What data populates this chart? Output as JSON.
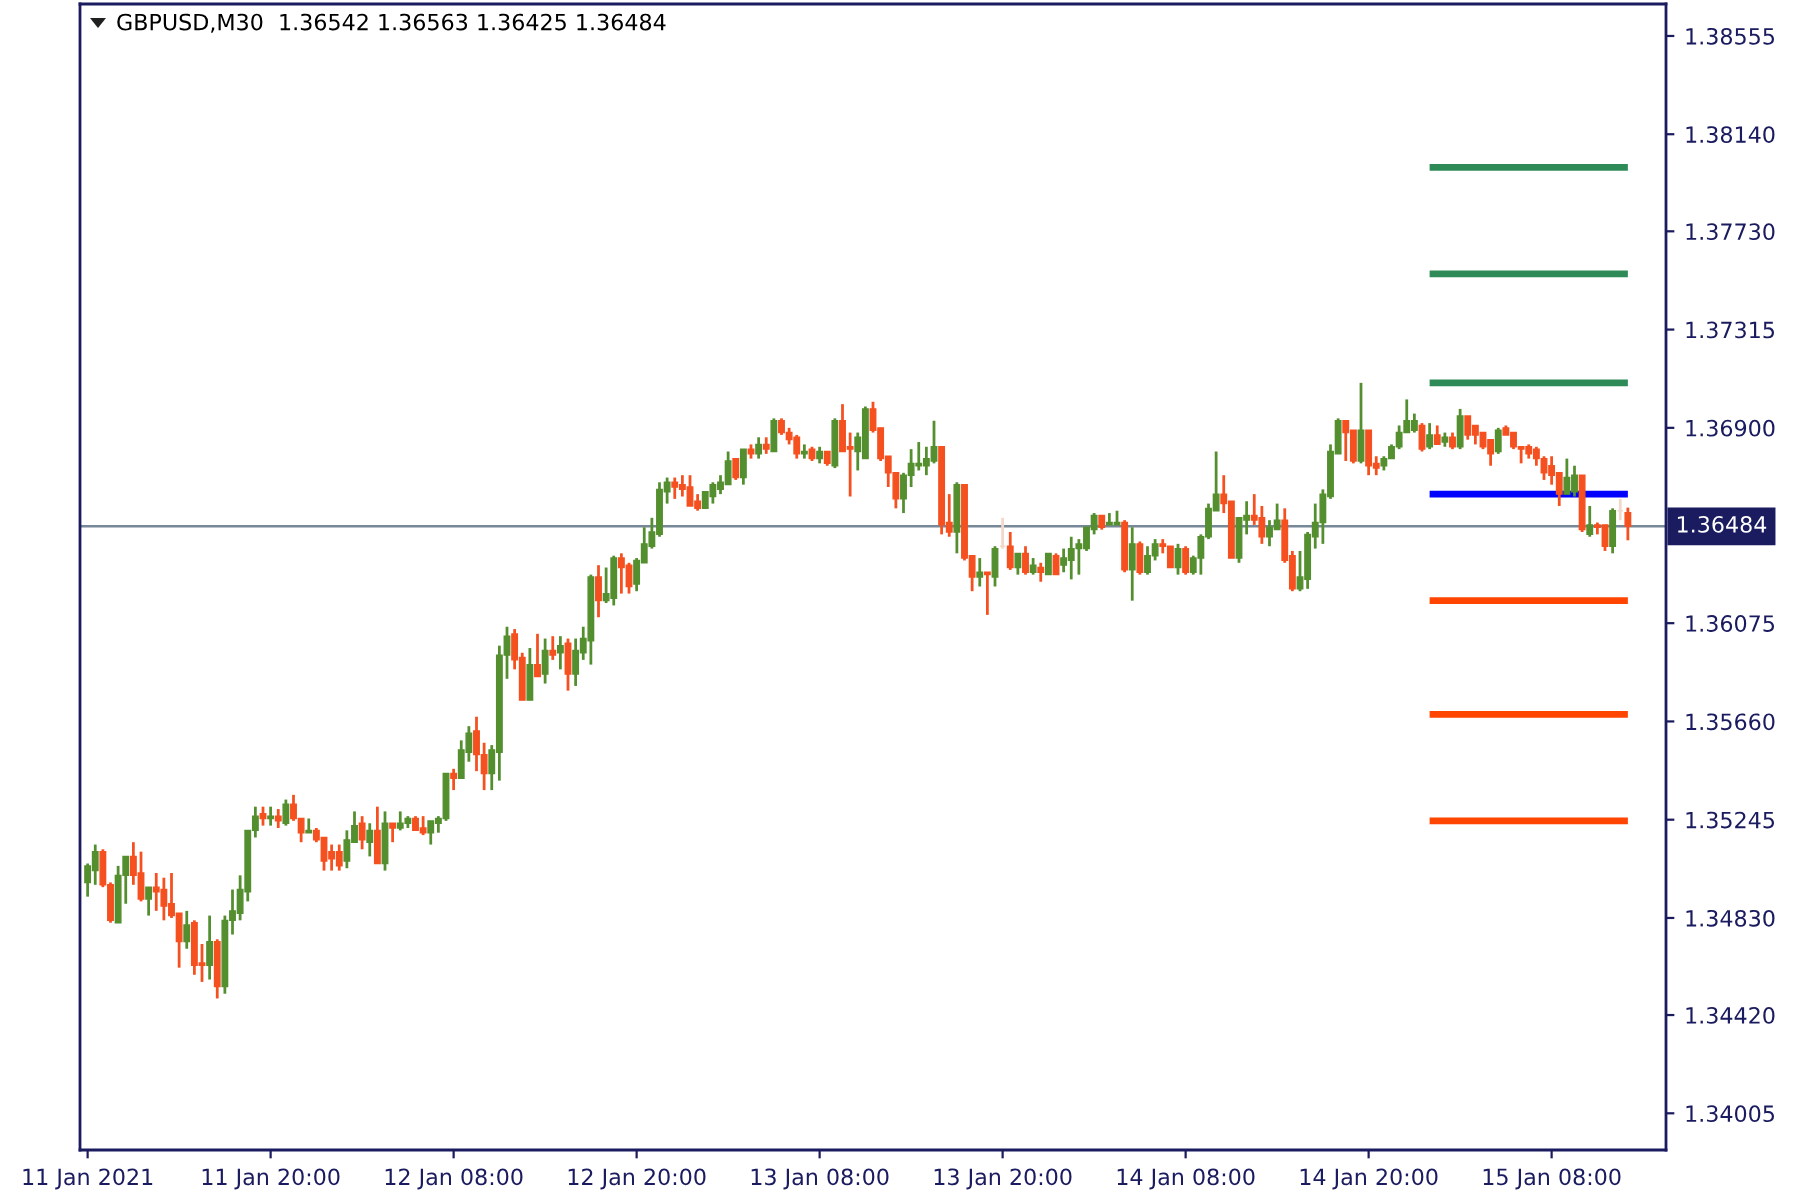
{
  "chart_data": {
    "type": "candlestick",
    "title": "GBPUSD,M30  1.36542 1.36563 1.36425 1.36484",
    "x": [
      "2021-01-11T08:00",
      "2021-01-11T08:30",
      "2021-01-11T09:00",
      "2021-01-11T09:30",
      "2021-01-11T10:00",
      "2021-01-11T10:30",
      "2021-01-11T11:00",
      "2021-01-11T11:30",
      "2021-01-11T12:00",
      "2021-01-11T12:30",
      "2021-01-11T13:00",
      "2021-01-11T13:30",
      "2021-01-11T14:00",
      "2021-01-11T14:30",
      "2021-01-11T15:00",
      "2021-01-11T15:30",
      "2021-01-11T16:00",
      "2021-01-11T16:30",
      "2021-01-11T17:00",
      "2021-01-11T17:30",
      "2021-01-11T18:00",
      "2021-01-11T18:30",
      "2021-01-11T19:00",
      "2021-01-11T19:30",
      "2021-01-11T20:00",
      "2021-01-11T20:30",
      "2021-01-11T21:00",
      "2021-01-11T21:30",
      "2021-01-11T22:00",
      "2021-01-11T22:30",
      "2021-01-11T23:00",
      "2021-01-11T23:30",
      "2021-01-12T00:00",
      "2021-01-12T00:30",
      "2021-01-12T01:00",
      "2021-01-12T01:30",
      "2021-01-12T02:00",
      "2021-01-12T02:30",
      "2021-01-12T03:00",
      "2021-01-12T03:30",
      "2021-01-12T04:00",
      "2021-01-12T04:30",
      "2021-01-12T05:00",
      "2021-01-12T05:30",
      "2021-01-12T06:00",
      "2021-01-12T06:30",
      "2021-01-12T07:00",
      "2021-01-12T07:30",
      "2021-01-12T08:00",
      "2021-01-12T08:30",
      "2021-01-12T09:00",
      "2021-01-12T09:30",
      "2021-01-12T10:00",
      "2021-01-12T10:30",
      "2021-01-12T11:00",
      "2021-01-12T11:30",
      "2021-01-12T12:00",
      "2021-01-12T12:30",
      "2021-01-12T13:00",
      "2021-01-12T13:30",
      "2021-01-12T14:00",
      "2021-01-12T14:30",
      "2021-01-12T15:00",
      "2021-01-12T15:30",
      "2021-01-12T16:00",
      "2021-01-12T16:30",
      "2021-01-12T17:00",
      "2021-01-12T17:30",
      "2021-01-12T18:00",
      "2021-01-12T18:30",
      "2021-01-12T19:00",
      "2021-01-12T19:30",
      "2021-01-12T20:00",
      "2021-01-12T20:30",
      "2021-01-12T21:00",
      "2021-01-12T21:30",
      "2021-01-12T22:00",
      "2021-01-12T22:30",
      "2021-01-12T23:00",
      "2021-01-12T23:30",
      "2021-01-13T00:00",
      "2021-01-13T00:30",
      "2021-01-13T01:00",
      "2021-01-13T01:30",
      "2021-01-13T02:00",
      "2021-01-13T02:30",
      "2021-01-13T03:00",
      "2021-01-13T03:30",
      "2021-01-13T04:00",
      "2021-01-13T04:30",
      "2021-01-13T05:00",
      "2021-01-13T05:30",
      "2021-01-13T06:00",
      "2021-01-13T06:30",
      "2021-01-13T07:00",
      "2021-01-13T07:30",
      "2021-01-13T08:00",
      "2021-01-13T08:30",
      "2021-01-13T09:00",
      "2021-01-13T09:30",
      "2021-01-13T10:00",
      "2021-01-13T10:30",
      "2021-01-13T11:00",
      "2021-01-13T11:30",
      "2021-01-13T12:00",
      "2021-01-13T12:30",
      "2021-01-13T13:00",
      "2021-01-13T13:30",
      "2021-01-13T14:00",
      "2021-01-13T14:30",
      "2021-01-13T15:00",
      "2021-01-13T15:30",
      "2021-01-13T16:00",
      "2021-01-13T16:30",
      "2021-01-13T17:00",
      "2021-01-13T17:30",
      "2021-01-13T18:00",
      "2021-01-13T18:30",
      "2021-01-13T19:00",
      "2021-01-13T19:30",
      "2021-01-13T20:00",
      "2021-01-13T20:30",
      "2021-01-13T21:00",
      "2021-01-13T21:30",
      "2021-01-13T22:00",
      "2021-01-13T22:30",
      "2021-01-13T23:00",
      "2021-01-13T23:30",
      "2021-01-14T00:00",
      "2021-01-14T00:30",
      "2021-01-14T01:00",
      "2021-01-14T01:30",
      "2021-01-14T02:00",
      "2021-01-14T02:30",
      "2021-01-14T03:00",
      "2021-01-14T03:30",
      "2021-01-14T04:00",
      "2021-01-14T04:30",
      "2021-01-14T05:00",
      "2021-01-14T05:30",
      "2021-01-14T06:00",
      "2021-01-14T06:30",
      "2021-01-14T07:00",
      "2021-01-14T07:30",
      "2021-01-14T08:00",
      "2021-01-14T08:30",
      "2021-01-14T09:00",
      "2021-01-14T09:30",
      "2021-01-14T10:00",
      "2021-01-14T10:30",
      "2021-01-14T11:00",
      "2021-01-14T11:30",
      "2021-01-14T12:00",
      "2021-01-14T12:30",
      "2021-01-14T13:00",
      "2021-01-14T13:30",
      "2021-01-14T14:00",
      "2021-01-14T14:30",
      "2021-01-14T15:00",
      "2021-01-14T15:30",
      "2021-01-14T16:00",
      "2021-01-14T16:30",
      "2021-01-14T17:00",
      "2021-01-14T17:30",
      "2021-01-14T18:00",
      "2021-01-14T18:30",
      "2021-01-14T19:00",
      "2021-01-14T19:30",
      "2021-01-14T20:00",
      "2021-01-14T20:30",
      "2021-01-14T21:00",
      "2021-01-14T21:30",
      "2021-01-14T22:00",
      "2021-01-14T22:30",
      "2021-01-14T23:00",
      "2021-01-14T23:30",
      "2021-01-15T00:00",
      "2021-01-15T00:30",
      "2021-01-15T01:00",
      "2021-01-15T01:30",
      "2021-01-15T02:00",
      "2021-01-15T02:30",
      "2021-01-15T03:00",
      "2021-01-15T03:30",
      "2021-01-15T04:00",
      "2021-01-15T04:30",
      "2021-01-15T05:00",
      "2021-01-15T05:30",
      "2021-01-15T06:00",
      "2021-01-15T06:30",
      "2021-01-15T07:00",
      "2021-01-15T07:30",
      "2021-01-15T08:00",
      "2021-01-15T08:30",
      "2021-01-15T09:00",
      "2021-01-15T09:30",
      "2021-01-15T10:00",
      "2021-01-15T10:30",
      "2021-01-15T11:00",
      "2021-01-15T11:30",
      "2021-01-15T12:00",
      "2021-01-15T12:30",
      "2021-01-15T13:00"
    ],
    "ohlc": [
      [
        1.3498,
        1.3506,
        1.3492,
        1.3505
      ],
      [
        1.3503,
        1.3514,
        1.3497,
        1.3511
      ],
      [
        1.3511,
        1.3512,
        1.3496,
        1.3497
      ],
      [
        1.3497,
        1.3498,
        1.3481,
        1.3482
      ],
      [
        1.3481,
        1.3505,
        1.3481,
        1.3501
      ],
      [
        1.3501,
        1.3509,
        1.3489,
        1.3509
      ],
      [
        1.3509,
        1.3515,
        1.3497,
        1.3501
      ],
      [
        1.3502,
        1.3511,
        1.349,
        1.3491
      ],
      [
        1.3491,
        1.3496,
        1.3484,
        1.3496
      ],
      [
        1.3496,
        1.3502,
        1.3486,
        1.3494
      ],
      [
        1.3495,
        1.35,
        1.3482,
        1.3488
      ],
      [
        1.3489,
        1.3502,
        1.3483,
        1.3484
      ],
      [
        1.3485,
        1.3485,
        1.3462,
        1.3473
      ],
      [
        1.3473,
        1.3486,
        1.347,
        1.348
      ],
      [
        1.3481,
        1.3482,
        1.3459,
        1.3463
      ],
      [
        1.3464,
        1.3472,
        1.3456,
        1.3463
      ],
      [
        1.3463,
        1.3484,
        1.3457,
        1.3473
      ],
      [
        1.3473,
        1.3474,
        1.3449,
        1.3454
      ],
      [
        1.3454,
        1.3484,
        1.3451,
        1.3482
      ],
      [
        1.3482,
        1.3495,
        1.3476,
        1.3486
      ],
      [
        1.3485,
        1.3501,
        1.3482,
        1.3495
      ],
      [
        1.3494,
        1.352,
        1.349,
        1.352
      ],
      [
        1.352,
        1.353,
        1.3517,
        1.3526
      ],
      [
        1.3527,
        1.353,
        1.3522,
        1.3525
      ],
      [
        1.3525,
        1.353,
        1.3522,
        1.3526
      ],
      [
        1.3526,
        1.3529,
        1.3521,
        1.3524
      ],
      [
        1.3523,
        1.3533,
        1.3522,
        1.3531
      ],
      [
        1.3531,
        1.3535,
        1.3524,
        1.3525
      ],
      [
        1.3525,
        1.3525,
        1.3515,
        1.3519
      ],
      [
        1.3519,
        1.3525,
        1.3519,
        1.352
      ],
      [
        1.352,
        1.3521,
        1.3515,
        1.3516
      ],
      [
        1.3517,
        1.3517,
        1.3503,
        1.3507
      ],
      [
        1.3511,
        1.3514,
        1.3503,
        1.3508
      ],
      [
        1.3511,
        1.3514,
        1.3503,
        1.3505
      ],
      [
        1.3507,
        1.352,
        1.3504,
        1.3516
      ],
      [
        1.3515,
        1.3528,
        1.3515,
        1.3522
      ],
      [
        1.3523,
        1.3526,
        1.3512,
        1.3516
      ],
      [
        1.3515,
        1.3523,
        1.3509,
        1.352
      ],
      [
        1.352,
        1.353,
        1.3506,
        1.3506
      ],
      [
        1.3506,
        1.3528,
        1.3503,
        1.3523
      ],
      [
        1.3523,
        1.3523,
        1.3515,
        1.3521
      ],
      [
        1.3521,
        1.3528,
        1.352,
        1.3523
      ],
      [
        1.3523,
        1.3526,
        1.3521,
        1.3525
      ],
      [
        1.3525,
        1.3526,
        1.352,
        1.352
      ],
      [
        1.3521,
        1.3526,
        1.3518,
        1.3519
      ],
      [
        1.3519,
        1.3524,
        1.3514,
        1.3524
      ],
      [
        1.3523,
        1.3526,
        1.3519,
        1.3525
      ],
      [
        1.3525,
        1.3544,
        1.3524,
        1.3544
      ],
      [
        1.3544,
        1.3546,
        1.3537,
        1.3542
      ],
      [
        1.3542,
        1.3558,
        1.3542,
        1.3554
      ],
      [
        1.3553,
        1.3564,
        1.3549,
        1.3561
      ],
      [
        1.3562,
        1.3568,
        1.3545,
        1.3552
      ],
      [
        1.3552,
        1.3557,
        1.3537,
        1.3544
      ],
      [
        1.3544,
        1.3556,
        1.3537,
        1.3554
      ],
      [
        1.3553,
        1.3598,
        1.3541,
        1.3594
      ],
      [
        1.3594,
        1.3606,
        1.3584,
        1.3602
      ],
      [
        1.3603,
        1.3605,
        1.3588,
        1.3592
      ],
      [
        1.3593,
        1.3595,
        1.3575,
        1.3575
      ],
      [
        1.3575,
        1.3597,
        1.3575,
        1.359
      ],
      [
        1.359,
        1.3603,
        1.3585,
        1.3585
      ],
      [
        1.3586,
        1.3601,
        1.3582,
        1.3596
      ],
      [
        1.3596,
        1.3602,
        1.3592,
        1.3594
      ],
      [
        1.3595,
        1.3602,
        1.3588,
        1.3598
      ],
      [
        1.3599,
        1.3601,
        1.3579,
        1.3586
      ],
      [
        1.3586,
        1.3601,
        1.3581,
        1.3596
      ],
      [
        1.3595,
        1.3606,
        1.3592,
        1.3601
      ],
      [
        1.36,
        1.3628,
        1.359,
        1.3627
      ],
      [
        1.3627,
        1.3632,
        1.361,
        1.3617
      ],
      [
        1.3617,
        1.3631,
        1.3616,
        1.362
      ],
      [
        1.3618,
        1.3636,
        1.3615,
        1.3635
      ],
      [
        1.3635,
        1.3637,
        1.362,
        1.3631
      ],
      [
        1.3632,
        1.3633,
        1.362,
        1.3623
      ],
      [
        1.3624,
        1.3635,
        1.3621,
        1.3634
      ],
      [
        1.3633,
        1.3648,
        1.3633,
        1.3641
      ],
      [
        1.364,
        1.3652,
        1.3639,
        1.3646
      ],
      [
        1.3645,
        1.3667,
        1.3644,
        1.3664
      ],
      [
        1.3663,
        1.3669,
        1.3658,
        1.3667
      ],
      [
        1.3667,
        1.3669,
        1.366,
        1.3665
      ],
      [
        1.3666,
        1.367,
        1.3661,
        1.3664
      ],
      [
        1.3665,
        1.367,
        1.3657,
        1.3657
      ],
      [
        1.3659,
        1.3662,
        1.3655,
        1.3656
      ],
      [
        1.3656,
        1.3663,
        1.3656,
        1.3663
      ],
      [
        1.3661,
        1.3667,
        1.3658,
        1.3666
      ],
      [
        1.3664,
        1.367,
        1.3662,
        1.3667
      ],
      [
        1.3666,
        1.368,
        1.3666,
        1.3676
      ],
      [
        1.3677,
        1.3677,
        1.3668,
        1.3669
      ],
      [
        1.3669,
        1.3681,
        1.3666,
        1.3681
      ],
      [
        1.3681,
        1.3683,
        1.3677,
        1.3679
      ],
      [
        1.3679,
        1.3686,
        1.3677,
        1.3683
      ],
      [
        1.3683,
        1.3686,
        1.3679,
        1.3681
      ],
      [
        1.368,
        1.3694,
        1.368,
        1.3693
      ],
      [
        1.3693,
        1.3694,
        1.3687,
        1.3688
      ],
      [
        1.3688,
        1.369,
        1.3683,
        1.3685
      ],
      [
        1.3686,
        1.3687,
        1.3677,
        1.3679
      ],
      [
        1.3679,
        1.3683,
        1.3677,
        1.368
      ],
      [
        1.3681,
        1.3682,
        1.3676,
        1.3677
      ],
      [
        1.3677,
        1.3682,
        1.3675,
        1.368
      ],
      [
        1.368,
        1.368,
        1.3674,
        1.3675
      ],
      [
        1.3674,
        1.3694,
        1.3673,
        1.3693
      ],
      [
        1.3693,
        1.37,
        1.368,
        1.368
      ],
      [
        1.3682,
        1.3688,
        1.3661,
        1.3681
      ],
      [
        1.368,
        1.3688,
        1.3672,
        1.3686
      ],
      [
        1.3677,
        1.3699,
        1.3677,
        1.3698
      ],
      [
        1.3698,
        1.3701,
        1.3688,
        1.3689
      ],
      [
        1.369,
        1.369,
        1.3676,
        1.3677
      ],
      [
        1.3678,
        1.3678,
        1.3665,
        1.3671
      ],
      [
        1.3671,
        1.3671,
        1.3656,
        1.366
      ],
      [
        1.366,
        1.3671,
        1.3654,
        1.367
      ],
      [
        1.367,
        1.3681,
        1.3665,
        1.3675
      ],
      [
        1.3674,
        1.3684,
        1.3672,
        1.3675
      ],
      [
        1.3674,
        1.3682,
        1.367,
        1.3677
      ],
      [
        1.3676,
        1.3693,
        1.3675,
        1.3682
      ],
      [
        1.3682,
        1.3682,
        1.3645,
        1.3649
      ],
      [
        1.365,
        1.3662,
        1.3644,
        1.3646
      ],
      [
        1.3646,
        1.3667,
        1.3637,
        1.3666
      ],
      [
        1.3666,
        1.3666,
        1.3634,
        1.3635
      ],
      [
        1.3636,
        1.3636,
        1.3621,
        1.3627
      ],
      [
        1.3627,
        1.3635,
        1.3623,
        1.3629
      ],
      [
        1.3629,
        1.3629,
        1.3611,
        1.3628
      ],
      [
        1.3627,
        1.364,
        1.3623,
        1.3639
      ],
      [
        1.364,
        1.3652,
        1.3639,
        1.364
      ],
      [
        1.364,
        1.3646,
        1.363,
        1.3631
      ],
      [
        1.3631,
        1.3637,
        1.3628,
        1.3637
      ],
      [
        1.3637,
        1.364,
        1.3628,
        1.3629
      ],
      [
        1.3629,
        1.3635,
        1.3628,
        1.3632
      ],
      [
        1.3631,
        1.3633,
        1.3625,
        1.3629
      ],
      [
        1.3628,
        1.3637,
        1.3628,
        1.3637
      ],
      [
        1.3636,
        1.3637,
        1.3628,
        1.3628
      ],
      [
        1.3632,
        1.3639,
        1.3629,
        1.3635
      ],
      [
        1.3634,
        1.3644,
        1.3626,
        1.3639
      ],
      [
        1.3639,
        1.3643,
        1.3628,
        1.3641
      ],
      [
        1.3639,
        1.3648,
        1.3638,
        1.3648
      ],
      [
        1.3647,
        1.3654,
        1.3645,
        1.3653
      ],
      [
        1.3653,
        1.3653,
        1.3647,
        1.3648
      ],
      [
        1.3649,
        1.3654,
        1.3649,
        1.365
      ],
      [
        1.3649,
        1.3655,
        1.3649,
        1.365
      ],
      [
        1.365,
        1.3651,
        1.3629,
        1.363
      ],
      [
        1.363,
        1.3648,
        1.3617,
        1.3641
      ],
      [
        1.3641,
        1.3642,
        1.3628,
        1.3629
      ],
      [
        1.3629,
        1.364,
        1.3628,
        1.3636
      ],
      [
        1.3636,
        1.3643,
        1.3634,
        1.3641
      ],
      [
        1.3641,
        1.3643,
        1.3637,
        1.364
      ],
      [
        1.364,
        1.364,
        1.3631,
        1.3631
      ],
      [
        1.3631,
        1.3641,
        1.3628,
        1.3639
      ],
      [
        1.3639,
        1.364,
        1.3628,
        1.3629
      ],
      [
        1.3629,
        1.3636,
        1.3628,
        1.3635
      ],
      [
        1.3635,
        1.3645,
        1.3628,
        1.3644
      ],
      [
        1.3644,
        1.3658,
        1.3643,
        1.3656
      ],
      [
        1.3655,
        1.368,
        1.3655,
        1.3662
      ],
      [
        1.3662,
        1.367,
        1.3654,
        1.3658
      ],
      [
        1.3659,
        1.3659,
        1.3635,
        1.3635
      ],
      [
        1.3635,
        1.3652,
        1.3633,
        1.3652
      ],
      [
        1.3651,
        1.3659,
        1.3645,
        1.3653
      ],
      [
        1.3653,
        1.3662,
        1.3649,
        1.3651
      ],
      [
        1.3652,
        1.3657,
        1.3641,
        1.3644
      ],
      [
        1.3644,
        1.3651,
        1.364,
        1.3648
      ],
      [
        1.3647,
        1.3658,
        1.3647,
        1.3651
      ],
      [
        1.3651,
        1.3656,
        1.3633,
        1.3634
      ],
      [
        1.3636,
        1.3638,
        1.3621,
        1.3622
      ],
      [
        1.3622,
        1.3638,
        1.3621,
        1.3627
      ],
      [
        1.3626,
        1.3646,
        1.3622,
        1.3645
      ],
      [
        1.3644,
        1.3658,
        1.3639,
        1.365
      ],
      [
        1.365,
        1.3664,
        1.3641,
        1.3662
      ],
      [
        1.3661,
        1.3683,
        1.366,
        1.368
      ],
      [
        1.3679,
        1.3694,
        1.3679,
        1.3693
      ],
      [
        1.3693,
        1.3693,
        1.3676,
        1.3688
      ],
      [
        1.3689,
        1.3689,
        1.3675,
        1.3676
      ],
      [
        1.3676,
        1.3709,
        1.3675,
        1.3689
      ],
      [
        1.3689,
        1.3689,
        1.367,
        1.3674
      ],
      [
        1.3675,
        1.3678,
        1.367,
        1.3673
      ],
      [
        1.3674,
        1.3678,
        1.3672,
        1.3677
      ],
      [
        1.3677,
        1.3683,
        1.3677,
        1.3682
      ],
      [
        1.3682,
        1.3691,
        1.3681,
        1.3688
      ],
      [
        1.3688,
        1.3702,
        1.3688,
        1.3693
      ],
      [
        1.3689,
        1.3696,
        1.3688,
        1.3693
      ],
      [
        1.3691,
        1.3692,
        1.368,
        1.3681
      ],
      [
        1.3682,
        1.3692,
        1.3681,
        1.3687
      ],
      [
        1.3687,
        1.3691,
        1.3683,
        1.3683
      ],
      [
        1.3684,
        1.3688,
        1.3682,
        1.3686
      ],
      [
        1.3686,
        1.3688,
        1.3681,
        1.3682
      ],
      [
        1.3682,
        1.3698,
        1.3681,
        1.3695
      ],
      [
        1.3695,
        1.3695,
        1.3685,
        1.3687
      ],
      [
        1.3691,
        1.3691,
        1.3683,
        1.3687
      ],
      [
        1.3688,
        1.3688,
        1.3681,
        1.3682
      ],
      [
        1.3685,
        1.3685,
        1.3674,
        1.3679
      ],
      [
        1.368,
        1.369,
        1.3679,
        1.3689
      ],
      [
        1.369,
        1.3691,
        1.3687,
        1.3687
      ],
      [
        1.3688,
        1.3688,
        1.3681,
        1.3682
      ],
      [
        1.3682,
        1.3682,
        1.3675,
        1.3681
      ],
      [
        1.3682,
        1.3683,
        1.3677,
        1.3679
      ],
      [
        1.3681,
        1.3682,
        1.3674,
        1.3677
      ],
      [
        1.3677,
        1.3678,
        1.3668,
        1.3671
      ],
      [
        1.3674,
        1.3678,
        1.3666,
        1.367
      ],
      [
        1.3671,
        1.3671,
        1.3657,
        1.3662
      ],
      [
        1.3662,
        1.3677,
        1.3662,
        1.3669
      ],
      [
        1.3663,
        1.3674,
        1.3661,
        1.367
      ],
      [
        1.367,
        1.367,
        1.3646,
        1.3647
      ],
      [
        1.3645,
        1.3657,
        1.3644,
        1.3649
      ],
      [
        1.3649,
        1.365,
        1.3645,
        1.3648
      ],
      [
        1.3649,
        1.3649,
        1.3638,
        1.364
      ],
      [
        1.364,
        1.3656,
        1.3637,
        1.3655
      ],
      [
        1.3655,
        1.366,
        1.3651,
        1.3655
      ],
      [
        1.36542,
        1.36563,
        1.36425,
        1.36484
      ]
    ],
    "colors": [
      "#548f2f",
      "#548f2f",
      "#f5501f",
      "#f5501f",
      "#548f2f",
      "#548f2f",
      "#f5501f",
      "#f5501f",
      "#548f2f",
      "#f5501f",
      "#f5501f",
      "#f5501f",
      "#f5501f",
      "#548f2f",
      "#f5501f",
      "#f5501f",
      "#548f2f",
      "#f5501f",
      "#548f2f",
      "#548f2f",
      "#548f2f",
      "#548f2f",
      "#548f2f",
      "#f5501f",
      "#548f2f",
      "#f5501f",
      "#548f2f",
      "#f5501f",
      "#f5501f",
      "#548f2f",
      "#f5501f",
      "#f5501f",
      "#f5501f",
      "#f5501f",
      "#548f2f",
      "#548f2f",
      "#f5501f",
      "#548f2f",
      "#f5501f",
      "#548f2f",
      "#f5501f",
      "#548f2f",
      "#548f2f",
      "#f5501f",
      "#f5501f",
      "#548f2f",
      "#548f2f",
      "#548f2f",
      "#f5501f",
      "#548f2f",
      "#548f2f",
      "#f5501f",
      "#f5501f",
      "#548f2f",
      "#548f2f",
      "#548f2f",
      "#f5501f",
      "#f5501f",
      "#548f2f",
      "#f5501f",
      "#548f2f",
      "#f5501f",
      "#548f2f",
      "#f5501f",
      "#548f2f",
      "#548f2f",
      "#548f2f",
      "#f5501f",
      "#548f2f",
      "#548f2f",
      "#f5501f",
      "#f5501f",
      "#548f2f",
      "#548f2f",
      "#548f2f",
      "#548f2f",
      "#548f2f",
      "#f5501f",
      "#f5501f",
      "#f5501f",
      "#f5501f",
      "#548f2f",
      "#548f2f",
      "#548f2f",
      "#548f2f",
      "#f5501f",
      "#548f2f",
      "#f5501f",
      "#548f2f",
      "#f5501f",
      "#548f2f",
      "#f5501f",
      "#f5501f",
      "#f5501f",
      "#548f2f",
      "#f5501f",
      "#548f2f",
      "#f5501f",
      "#548f2f",
      "#f5501f",
      "#f5501f",
      "#548f2f",
      "#548f2f",
      "#f5501f",
      "#f5501f",
      "#f5501f",
      "#f5501f",
      "#548f2f",
      "#548f2f",
      "#548f2f",
      "#548f2f",
      "#548f2f",
      "#f5501f",
      "#f5501f",
      "#548f2f",
      "#f5501f",
      "#f5501f",
      "#548f2f",
      "#f5501f",
      "#548f2f",
      "#f2d8cb",
      "#f5501f",
      "#548f2f",
      "#f5501f",
      "#548f2f",
      "#f5501f",
      "#548f2f",
      "#f5501f",
      "#548f2f",
      "#548f2f",
      "#548f2f",
      "#548f2f",
      "#548f2f",
      "#f5501f",
      "#548f2f",
      "#548f2f",
      "#f5501f",
      "#548f2f",
      "#f5501f",
      "#548f2f",
      "#548f2f",
      "#f5501f",
      "#f5501f",
      "#548f2f",
      "#f5501f",
      "#548f2f",
      "#548f2f",
      "#548f2f",
      "#548f2f",
      "#f5501f",
      "#f5501f",
      "#548f2f",
      "#548f2f",
      "#f5501f",
      "#f5501f",
      "#548f2f",
      "#548f2f",
      "#f5501f",
      "#f5501f",
      "#548f2f",
      "#548f2f",
      "#548f2f",
      "#548f2f",
      "#548f2f",
      "#548f2f",
      "#f5501f",
      "#f5501f",
      "#548f2f",
      "#f5501f",
      "#f5501f",
      "#548f2f",
      "#548f2f",
      "#548f2f",
      "#548f2f",
      "#548f2f",
      "#f5501f",
      "#548f2f",
      "#f5501f",
      "#548f2f",
      "#f5501f",
      "#548f2f",
      "#f5501f",
      "#f5501f",
      "#f5501f",
      "#f5501f",
      "#548f2f",
      "#f5501f",
      "#f5501f",
      "#f5501f",
      "#f5501f",
      "#f5501f",
      "#f5501f",
      "#f5501f",
      "#f5501f",
      "#548f2f",
      "#548f2f",
      "#f5501f",
      "#548f2f",
      "#f5501f",
      "#f5501f",
      "#548f2f",
      "#f2d8cb",
      "#f5501f"
    ],
    "series": [
      {
        "type": "line",
        "x": [
          "2021-01-15T00:00",
          "2021-01-15T13:00"
        ],
        "values": [
          1.38,
          1.38
        ],
        "color": "#2e8b57"
      },
      {
        "type": "line",
        "x": [
          "2021-01-15T00:00",
          "2021-01-15T13:00"
        ],
        "values": [
          1.3755,
          1.3755
        ],
        "color": "#2e8b57"
      },
      {
        "type": "line",
        "x": [
          "2021-01-15T00:00",
          "2021-01-15T13:00"
        ],
        "values": [
          1.3709,
          1.3709
        ],
        "color": "#2e8b57"
      },
      {
        "type": "line",
        "x": [
          "2021-01-15T00:00",
          "2021-01-15T13:00"
        ],
        "values": [
          1.3662,
          1.3662
        ],
        "color": "#0000ff"
      },
      {
        "type": "line",
        "x": [
          "2021-01-15T00:00",
          "2021-01-15T13:00"
        ],
        "values": [
          1.3617,
          1.3617
        ],
        "color": "#ff4500"
      },
      {
        "type": "line",
        "x": [
          "2021-01-15T00:00",
          "2021-01-15T13:00"
        ],
        "values": [
          1.3569,
          1.3569
        ],
        "color": "#ff4500"
      },
      {
        "type": "line",
        "x": [
          "2021-01-15T00:00",
          "2021-01-15T13:00"
        ],
        "values": [
          1.3524,
          1.3524
        ],
        "color": "#ff4500"
      }
    ],
    "ref_lines": [
      {
        "axis": "y",
        "value": 1.36484,
        "label": "1.36484",
        "color": "#778899"
      }
    ],
    "xlim": [
      "2021-01-11T07:30",
      "2021-01-15T15:30"
    ],
    "xticks": [
      {
        "value": "2021-01-11T08:00",
        "label": "11 Jan 2021"
      },
      {
        "value": "2021-01-11T20:00",
        "label": "11 Jan 20:00"
      },
      {
        "value": "2021-01-12T08:00",
        "label": "12 Jan 08:00"
      },
      {
        "value": "2021-01-12T20:00",
        "label": "12 Jan 20:00"
      },
      {
        "value": "2021-01-13T08:00",
        "label": "13 Jan 08:00"
      },
      {
        "value": "2021-01-13T20:00",
        "label": "13 Jan 20:00"
      },
      {
        "value": "2021-01-14T08:00",
        "label": "14 Jan 08:00"
      },
      {
        "value": "2021-01-14T20:00",
        "label": "14 Jan 20:00"
      },
      {
        "value": "2021-01-15T08:00",
        "label": "15 Jan 08:00"
      }
    ],
    "ylim": [
      1.3385,
      1.3869
    ],
    "yticks": [
      1.38555,
      {
        "value": 1.3814,
        "label": "1.38140"
      },
      {
        "value": 1.3773,
        "label": "1.37730"
      },
      1.37315,
      {
        "value": 1.369,
        "label": "1.36900"
      },
      1.36075,
      {
        "value": 1.3566,
        "label": "1.35660"
      },
      1.35245,
      {
        "value": 1.3483,
        "label": "1.34830"
      },
      {
        "value": 1.3442,
        "label": "1.34420"
      },
      1.34005
    ]
  }
}
